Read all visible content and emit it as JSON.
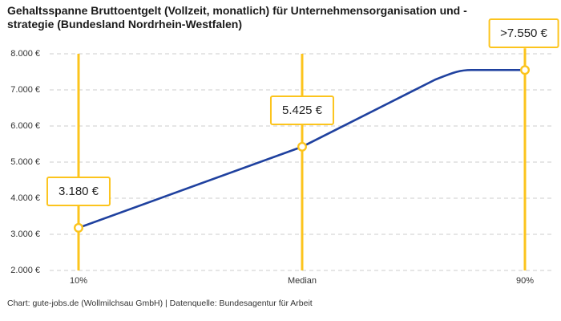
{
  "title": "Gehaltsspanne Bruttoentgelt (Vollzeit, monatlich) für Unternehmensorganisation und -strategie (Bundesland Nordrhein-Westfalen)",
  "footer": "Chart: gute-jobs.de (Wollmilchsau GmbH) | Datenquelle: Bundesagentur für Arbeit",
  "colors": {
    "accent_yellow": "#fcc41d",
    "line_blue": "#1f419f",
    "grid_gray": "#cccccc",
    "title_text": "#1a1a1a",
    "axis_text": "#333333",
    "label_text": "#222222",
    "background": "#ffffff"
  },
  "chart_data": {
    "type": "line",
    "title": "Gehaltsspanne Bruttoentgelt (Vollzeit, monatlich) für Unternehmensorganisation und -strategie (Bundesland Nordrhein-Westfalen)",
    "categories": [
      "10%",
      "Median",
      "90%"
    ],
    "values": [
      3180,
      5425,
      7550
    ],
    "value_labels": [
      "3.180 €",
      "5.425 €",
      ">7.550 €"
    ],
    "last_value_capped": true,
    "xlabel": "",
    "ylabel": "",
    "ylim": [
      2000,
      8000
    ],
    "y_ticks": [
      2000,
      3000,
      4000,
      5000,
      6000,
      7000,
      8000
    ],
    "y_tick_labels": [
      "2.000 €",
      "3.000 €",
      "4.000 €",
      "5.000 €",
      "6.000 €",
      "7.000 €",
      "8.000 €"
    ],
    "grid": "horizontal-dashed",
    "legend": "none",
    "source": "Chart: gute-jobs.de (Wollmilchsau GmbH) | Datenquelle: Bundesagentur für Arbeit"
  }
}
